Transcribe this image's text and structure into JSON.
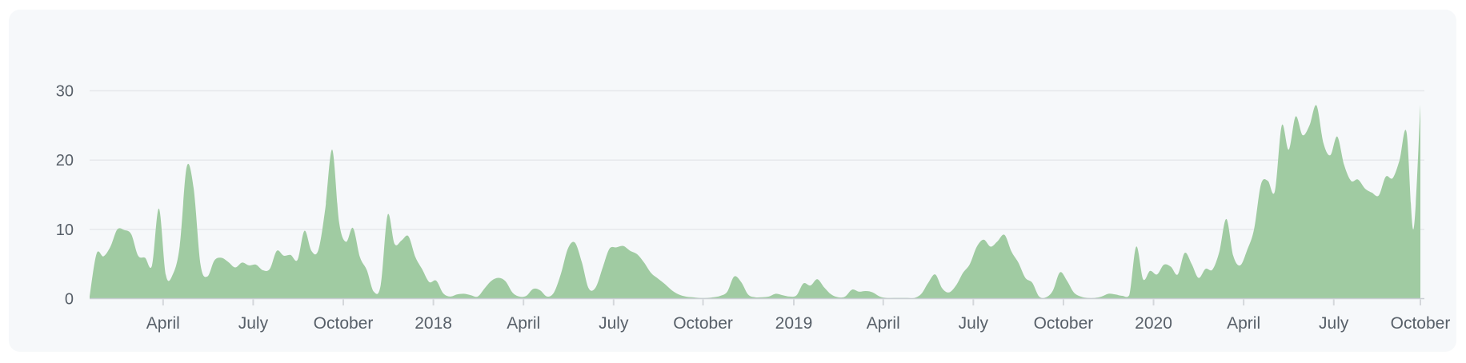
{
  "page": {
    "background": "#ffffff"
  },
  "panel": {
    "background": "#f6f8fa"
  },
  "chart_data": {
    "type": "area",
    "title": "",
    "xlabel": "",
    "ylabel": "",
    "ylim": [
      0,
      30
    ],
    "grid": true,
    "legend": "none",
    "y_ticks": [
      0,
      10,
      20,
      30
    ],
    "x_ticks": [
      {
        "label": "April",
        "week": 10.6
      },
      {
        "label": "July",
        "week": 23.6
      },
      {
        "label": "October",
        "week": 36.6
      },
      {
        "label": "2018",
        "week": 49.6
      },
      {
        "label": "April",
        "week": 62.6
      },
      {
        "label": "July",
        "week": 75.6
      },
      {
        "label": "October",
        "week": 88.5
      },
      {
        "label": "2019",
        "week": 101.6
      },
      {
        "label": "April",
        "week": 114.5
      },
      {
        "label": "July",
        "week": 127.5
      },
      {
        "label": "October",
        "week": 140.5
      },
      {
        "label": "2020",
        "week": 153.5
      },
      {
        "label": "April",
        "week": 166.5
      },
      {
        "label": "July",
        "week": 179.5
      },
      {
        "label": "October",
        "week": 192
      }
    ],
    "series_unit": "per week",
    "weekly_values": [
      0.3,
      6.5,
      6.1,
      7.5,
      10.0,
      9.9,
      9.3,
      6.2,
      5.9,
      4.8,
      13.0,
      3.4,
      3.5,
      7.6,
      19.0,
      16.0,
      4.9,
      3.2,
      5.5,
      5.9,
      5.3,
      4.5,
      5.2,
      4.8,
      4.9,
      4.1,
      4.3,
      6.9,
      6.2,
      6.3,
      5.6,
      9.8,
      6.9,
      7.0,
      13.0,
      21.5,
      11.0,
      8.2,
      10.2,
      6.0,
      4.1,
      1.0,
      2.0,
      12.1,
      7.9,
      8.4,
      9.0,
      6.0,
      4.2,
      2.4,
      2.6,
      0.8,
      0.3,
      0.6,
      0.7,
      0.5,
      0.3,
      1.5,
      2.6,
      3.0,
      2.5,
      0.9,
      0.3,
      0.4,
      1.4,
      1.2,
      0.3,
      0.9,
      3.6,
      7.2,
      8.1,
      5.3,
      1.5,
      1.6,
      4.4,
      7.2,
      7.4,
      7.6,
      6.9,
      6.4,
      5.2,
      3.7,
      2.9,
      2.1,
      1.2,
      0.6,
      0.3,
      0.2,
      0.1,
      0.1,
      0.2,
      0.4,
      1.0,
      3.2,
      2.4,
      0.6,
      0.2,
      0.2,
      0.3,
      0.7,
      0.5,
      0.3,
      0.5,
      2.2,
      1.9,
      2.8,
      1.6,
      0.6,
      0.2,
      0.3,
      1.3,
      1.0,
      1.1,
      0.9,
      0.3,
      0.1,
      0.1,
      0.1,
      0.1,
      0.1,
      0.7,
      2.3,
      3.5,
      1.5,
      0.9,
      1.9,
      3.7,
      5.0,
      7.5,
      8.5,
      7.5,
      8.3,
      9.2,
      6.8,
      5.2,
      3.0,
      2.3,
      0.3,
      0.2,
      1.2,
      3.8,
      2.6,
      0.9,
      0.3,
      0.1,
      0.1,
      0.3,
      0.7,
      0.6,
      0.4,
      0.5,
      7.5,
      2.8,
      4.0,
      3.5,
      4.9,
      4.6,
      3.5,
      6.6,
      5.0,
      3.0,
      4.3,
      4.2,
      6.8,
      11.5,
      6.2,
      4.8,
      7.0,
      10.0,
      16.5,
      17.0,
      15.5,
      25.0,
      21.5,
      26.3,
      23.6,
      25.0,
      27.9,
      22.5,
      20.7,
      23.4,
      19.3,
      17.0,
      17.2,
      15.9,
      15.3,
      14.9,
      17.6,
      17.4,
      20.0,
      24.0,
      10.0,
      28.0
    ],
    "colors": {
      "area_fill": "#a0cba2",
      "gridline": "#e7e9ec",
      "axis_line": "#c9ced3",
      "tick_mark": "#d4d7db",
      "label_text": "#586069"
    }
  }
}
